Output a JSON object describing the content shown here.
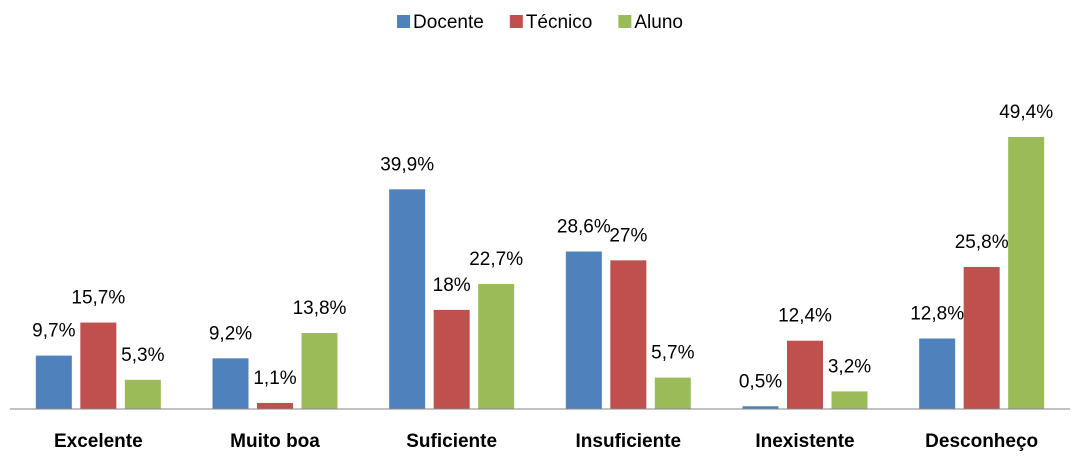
{
  "chart_data": {
    "type": "bar",
    "categories": [
      "Excelente",
      "Muito boa",
      "Suficiente",
      "Insuficiente",
      "Inexistente",
      "Desconheço"
    ],
    "series": [
      {
        "name": "Docente",
        "color": "#4f81bd",
        "values": [
          9.7,
          9.2,
          39.9,
          28.6,
          0.5,
          12.8
        ],
        "value_labels": [
          "9,7%",
          "9,2%",
          "39,9%",
          "28,6%",
          "0,5%",
          "12,8%"
        ]
      },
      {
        "name": "Técnico",
        "color": "#c0504d",
        "values": [
          15.7,
          1.1,
          18,
          27,
          12.4,
          25.8
        ],
        "value_labels": [
          "15,7%",
          "1,1%",
          "18%",
          "27%",
          "12,4%",
          "25,8%"
        ]
      },
      {
        "name": "Aluno",
        "color": "#9bbb59",
        "values": [
          5.3,
          13.8,
          22.7,
          5.7,
          3.2,
          49.4
        ],
        "value_labels": [
          "5,3%",
          "13,8%",
          "22,7%",
          "5,7%",
          "3,2%",
          "49,4%"
        ]
      }
    ],
    "legend": "top"
  }
}
